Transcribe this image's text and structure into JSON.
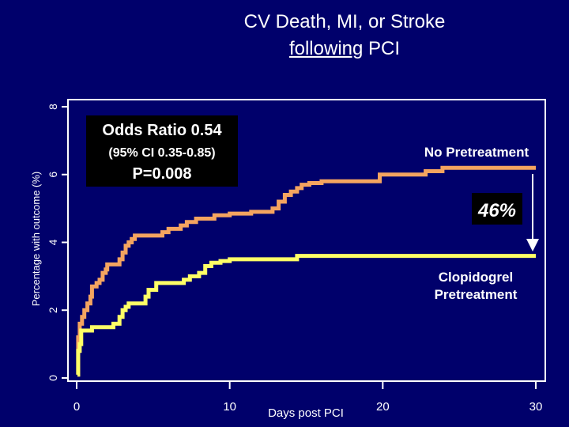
{
  "slide": {
    "title_line1": "CV Death, MI, or Stroke",
    "title_line2_underlined": "following",
    "title_line2_rest": "PCI",
    "background_color": "#00006b"
  },
  "stats_box": {
    "line1": "Odds Ratio 0.54",
    "line2": "(95% CI 0.35-0.85)",
    "line3": "P=0.008"
  },
  "reduction_badge": "46%",
  "chart_data": {
    "type": "line",
    "step": true,
    "xlabel": "Days post PCI",
    "ylabel": "Percentage with outcome (%)",
    "xlim": [
      0,
      30
    ],
    "ylim": [
      0,
      8
    ],
    "x_ticks": [
      "0",
      "10",
      "20",
      "30"
    ],
    "y_ticks": [
      "0",
      "2",
      "4",
      "6",
      "8"
    ],
    "grid": false,
    "series": [
      {
        "name": "No Pretreatment",
        "color": "#f4a460",
        "points": [
          [
            0.05,
            0.1
          ],
          [
            0.1,
            1.2
          ],
          [
            0.2,
            1.6
          ],
          [
            0.35,
            1.8
          ],
          [
            0.5,
            2.0
          ],
          [
            0.7,
            2.2
          ],
          [
            0.9,
            2.4
          ],
          [
            1.0,
            2.7
          ],
          [
            1.3,
            2.8
          ],
          [
            1.5,
            2.9
          ],
          [
            1.7,
            3.1
          ],
          [
            1.9,
            3.2
          ],
          [
            2.0,
            3.35
          ],
          [
            2.8,
            3.5
          ],
          [
            3.0,
            3.7
          ],
          [
            3.2,
            3.9
          ],
          [
            3.4,
            4.0
          ],
          [
            3.6,
            4.1
          ],
          [
            3.8,
            4.2
          ],
          [
            5.6,
            4.3
          ],
          [
            6.0,
            4.4
          ],
          [
            6.8,
            4.5
          ],
          [
            7.2,
            4.6
          ],
          [
            7.8,
            4.7
          ],
          [
            9.0,
            4.8
          ],
          [
            10.0,
            4.85
          ],
          [
            11.4,
            4.9
          ],
          [
            12.8,
            5.0
          ],
          [
            13.2,
            5.2
          ],
          [
            13.6,
            5.4
          ],
          [
            14.0,
            5.5
          ],
          [
            14.4,
            5.6
          ],
          [
            14.7,
            5.7
          ],
          [
            15.2,
            5.75
          ],
          [
            16.0,
            5.8
          ],
          [
            17.7,
            5.8
          ],
          [
            19.8,
            6.0
          ],
          [
            22.8,
            6.1
          ],
          [
            23.9,
            6.2
          ],
          [
            30.0,
            6.2
          ]
        ]
      },
      {
        "name": "Clopidogrel Pretreatment",
        "color": "#ffff66",
        "points": [
          [
            0.05,
            0.1
          ],
          [
            0.1,
            0.8
          ],
          [
            0.2,
            1.0
          ],
          [
            0.3,
            1.4
          ],
          [
            1.0,
            1.5
          ],
          [
            2.4,
            1.6
          ],
          [
            2.8,
            1.8
          ],
          [
            3.0,
            2.0
          ],
          [
            3.2,
            2.1
          ],
          [
            3.4,
            2.2
          ],
          [
            4.5,
            2.4
          ],
          [
            4.7,
            2.6
          ],
          [
            5.2,
            2.8
          ],
          [
            7.0,
            2.9
          ],
          [
            7.4,
            3.0
          ],
          [
            8.0,
            3.1
          ],
          [
            8.4,
            3.3
          ],
          [
            8.8,
            3.4
          ],
          [
            9.4,
            3.45
          ],
          [
            10.0,
            3.5
          ],
          [
            14.0,
            3.5
          ],
          [
            14.4,
            3.6
          ],
          [
            30.0,
            3.6
          ]
        ]
      }
    ],
    "legend_labels": {
      "no_pretreatment": "No Pretreatment",
      "clopidogrel_line1": "Clopidogrel",
      "clopidogrel_line2": "Pretreatment"
    }
  }
}
